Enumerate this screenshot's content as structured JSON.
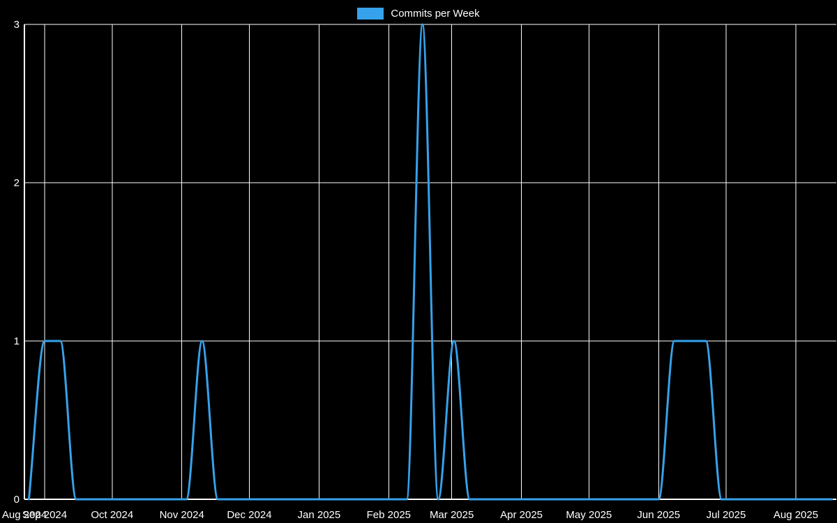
{
  "chart_data": {
    "type": "line",
    "legend_label": "Commits per Week",
    "legend_position": "top",
    "background": "#000000",
    "grid": true,
    "grid_color": "#ffffff",
    "text_color": "#ffffff",
    "ylim": [
      0,
      3
    ],
    "y_ticks": [
      0,
      1,
      2,
      3
    ],
    "x_domain": [
      "2024-08-23",
      "2025-08-19"
    ],
    "x_ticks": [
      {
        "label": "Aug 2024",
        "date": "2024-08-01"
      },
      {
        "label": "Sep 2024",
        "date": "2024-09-01"
      },
      {
        "label": "Oct 2024",
        "date": "2024-10-01"
      },
      {
        "label": "Nov 2024",
        "date": "2024-11-01"
      },
      {
        "label": "Dec 2024",
        "date": "2024-12-01"
      },
      {
        "label": "Jan 2025",
        "date": "2025-01-01"
      },
      {
        "label": "Feb 2025",
        "date": "2025-02-01"
      },
      {
        "label": "Mar 2025",
        "date": "2025-03-01"
      },
      {
        "label": "Apr 2025",
        "date": "2025-04-01"
      },
      {
        "label": "May 2025",
        "date": "2025-05-01"
      },
      {
        "label": "Jun 2025",
        "date": "2025-06-01"
      },
      {
        "label": "Jul 2025",
        "date": "2025-07-01"
      },
      {
        "label": "Aug 2025",
        "date": "2025-08-01"
      }
    ],
    "series": [
      {
        "name": "Commits per Week",
        "color": "#36A2EB",
        "line_width": 3,
        "points": [
          [
            "2024-08-25",
            0
          ],
          [
            "2024-09-01",
            1
          ],
          [
            "2024-09-08",
            1
          ],
          [
            "2024-09-15",
            0
          ],
          [
            "2024-09-22",
            0
          ],
          [
            "2024-09-29",
            0
          ],
          [
            "2024-10-06",
            0
          ],
          [
            "2024-10-13",
            0
          ],
          [
            "2024-10-20",
            0
          ],
          [
            "2024-10-27",
            0
          ],
          [
            "2024-11-03",
            0
          ],
          [
            "2024-11-10",
            1
          ],
          [
            "2024-11-17",
            0
          ],
          [
            "2024-11-24",
            0
          ],
          [
            "2024-12-01",
            0
          ],
          [
            "2024-12-08",
            0
          ],
          [
            "2024-12-15",
            0
          ],
          [
            "2024-12-22",
            0
          ],
          [
            "2024-12-29",
            0
          ],
          [
            "2025-01-05",
            0
          ],
          [
            "2025-01-12",
            0
          ],
          [
            "2025-01-19",
            0
          ],
          [
            "2025-01-26",
            0
          ],
          [
            "2025-02-02",
            0
          ],
          [
            "2025-02-09",
            0
          ],
          [
            "2025-02-16",
            3
          ],
          [
            "2025-02-23",
            0
          ],
          [
            "2025-03-02",
            1
          ],
          [
            "2025-03-09",
            0
          ],
          [
            "2025-03-16",
            0
          ],
          [
            "2025-03-23",
            0
          ],
          [
            "2025-03-30",
            0
          ],
          [
            "2025-04-06",
            0
          ],
          [
            "2025-04-13",
            0
          ],
          [
            "2025-04-20",
            0
          ],
          [
            "2025-04-27",
            0
          ],
          [
            "2025-05-04",
            0
          ],
          [
            "2025-05-11",
            0
          ],
          [
            "2025-05-18",
            0
          ],
          [
            "2025-05-25",
            0
          ],
          [
            "2025-06-01",
            0
          ],
          [
            "2025-06-08",
            1
          ],
          [
            "2025-06-15",
            1
          ],
          [
            "2025-06-22",
            1
          ],
          [
            "2025-06-29",
            0
          ],
          [
            "2025-07-06",
            0
          ],
          [
            "2025-07-13",
            0
          ],
          [
            "2025-07-20",
            0
          ],
          [
            "2025-07-27",
            0
          ],
          [
            "2025-08-03",
            0
          ],
          [
            "2025-08-10",
            0
          ],
          [
            "2025-08-17",
            0
          ]
        ]
      }
    ]
  }
}
